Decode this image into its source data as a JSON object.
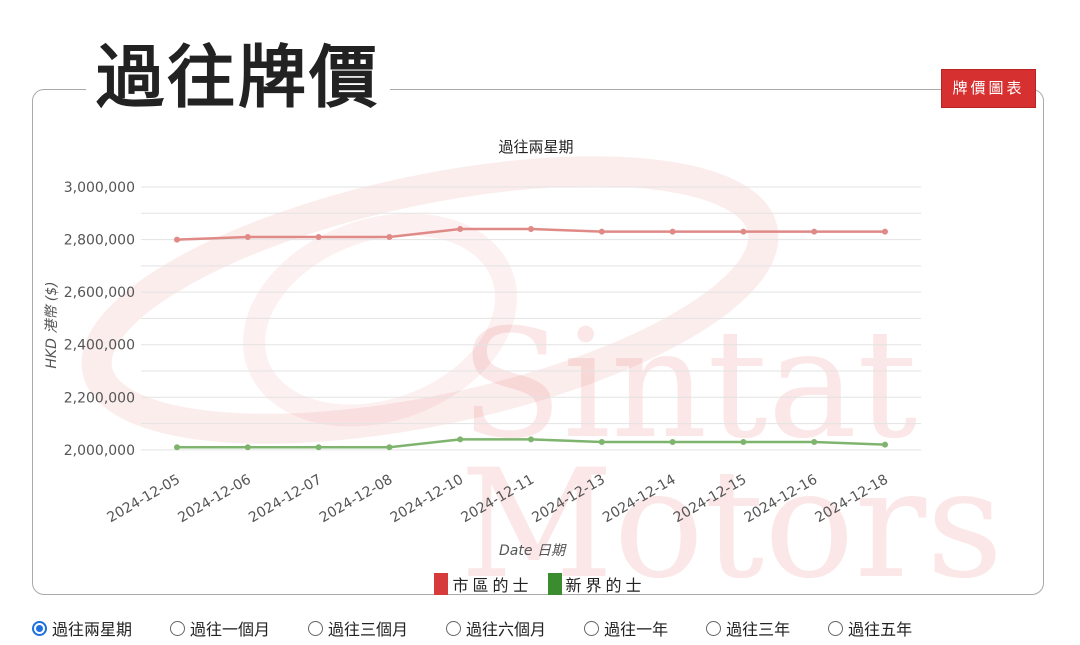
{
  "header": {
    "section_title": "過往牌價",
    "chart_button_label": "牌價圖表"
  },
  "watermark": {
    "line1": "Sintat",
    "line2": "Motors"
  },
  "chart_data": {
    "type": "line",
    "title": "過往兩星期",
    "xlabel": "Date 日期",
    "ylabel": "HKD 港幣 ($)",
    "categories": [
      "2024-12-05",
      "2024-12-06",
      "2024-12-07",
      "2024-12-08",
      "2024-12-10",
      "2024-12-11",
      "2024-12-13",
      "2024-12-14",
      "2024-12-15",
      "2024-12-16",
      "2024-12-18"
    ],
    "ylim": [
      1950000,
      3000000
    ],
    "yticks": [
      2000000,
      2200000,
      2400000,
      2600000,
      2800000,
      3000000
    ],
    "ytick_labels": [
      "2,000,000",
      "2,200,000",
      "2,400,000",
      "2,600,000",
      "2,800,000",
      "3,000,000"
    ],
    "grid": true,
    "legend": "bottom",
    "series": [
      {
        "name": "市區的士",
        "color": "#e08a87",
        "legend_color": "#d73a3a",
        "values": [
          2800000,
          2810000,
          2810000,
          2810000,
          2840000,
          2840000,
          2830000,
          2830000,
          2830000,
          2830000,
          2830000
        ]
      },
      {
        "name": "新界的士",
        "color": "#7fb46f",
        "legend_color": "#3a8c2f",
        "values": [
          2010000,
          2010000,
          2010000,
          2010000,
          2040000,
          2040000,
          2030000,
          2030000,
          2030000,
          2030000,
          2020000
        ]
      }
    ]
  },
  "periods": {
    "selected": 0,
    "options": [
      "過往兩星期",
      "過往一個月",
      "過往三個月",
      "過往六個月",
      "過往一年",
      "過往三年",
      "過往五年"
    ]
  }
}
